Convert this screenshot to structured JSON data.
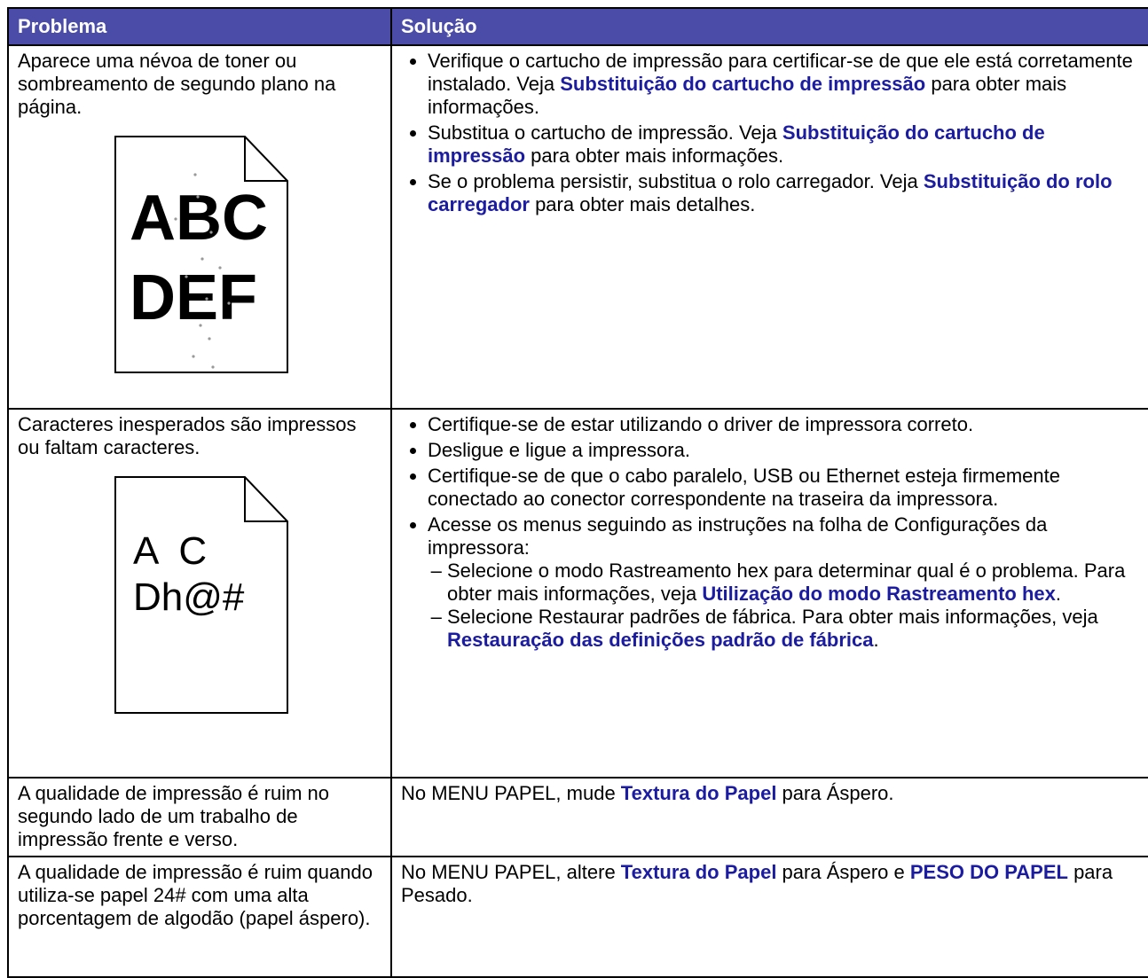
{
  "table": {
    "header": [
      "Problema",
      "Solução"
    ],
    "rows": [
      {
        "problem": "Aparece uma névoa de toner ou sombreamento de segundo plano na página.",
        "illustration": [
          "ABC",
          "DEF"
        ],
        "solution": {
          "bullets": [
            {
              "segments": [
                {
                  "text": "Verifique o cartucho de impressão para certificar-se de que ele está corretamente instalado. Veja "
                },
                {
                  "link": "Substituição do cartucho de impressão"
                },
                {
                  "text": " para obter mais informações."
                }
              ]
            },
            {
              "segments": [
                {
                  "text": "Substitua o cartucho de impressão. Veja "
                },
                {
                  "link": "Substituição do cartucho de impressão"
                },
                {
                  "text": " para obter mais informações."
                }
              ]
            },
            {
              "segments": [
                {
                  "text": "Se o problema persistir, substitua o rolo carregador. Veja "
                },
                {
                  "link": "Substituição do rolo carregador"
                },
                {
                  "text": " para obter mais detalhes."
                }
              ]
            }
          ]
        }
      },
      {
        "problem": "Caracteres inesperados são impressos ou faltam caracteres.",
        "illustration": [
          "A  C",
          "Dh@#"
        ],
        "solution": {
          "bullets": [
            {
              "segments": [
                {
                  "text": "Certifique-se de estar utilizando o driver de impressora correto."
                }
              ]
            },
            {
              "segments": [
                {
                  "text": "Desligue e ligue a impressora."
                }
              ]
            },
            {
              "segments": [
                {
                  "text": "Certifique-se de que o cabo paralelo, USB ou Ethernet esteja firmemente conectado ao conector correspondente na traseira da impressora."
                }
              ]
            },
            {
              "segments": [
                {
                  "text": "Acesse os menus seguindo as instruções na folha de Configurações da impressora:"
                }
              ],
              "subitems": [
                {
                  "segments": [
                    {
                      "text": "Selecione o modo Rastreamento hex para determinar qual é o problema. Para obter mais informações, veja "
                    },
                    {
                      "link": "Utilização do modo Rastreamento hex"
                    },
                    {
                      "text": "."
                    }
                  ]
                },
                {
                  "segments": [
                    {
                      "text": "Selecione Restaurar padrões de fábrica. Para obter mais informações, veja "
                    },
                    {
                      "link": "Restauração das definições padrão de fábrica"
                    },
                    {
                      "text": "."
                    }
                  ]
                }
              ]
            }
          ]
        }
      },
      {
        "problem": "A qualidade de impressão é ruim no segundo lado de um trabalho de impressão frente e verso.",
        "solution": {
          "paragraph": [
            {
              "text": "No MENU PAPEL, mude "
            },
            {
              "link": "Textura do Papel"
            },
            {
              "text": " para Áspero."
            }
          ]
        }
      },
      {
        "problem": "A qualidade de impressão é ruim quando utiliza-se papel 24# com uma alta porcentagem de algodão (papel áspero).",
        "solution": {
          "paragraph": [
            {
              "text": "No MENU PAPEL, altere "
            },
            {
              "link": "Textura do Papel"
            },
            {
              "text": " para Áspero e "
            },
            {
              "link": "PESO DO PAPEL"
            },
            {
              "text": " para Pesado."
            }
          ]
        }
      }
    ]
  }
}
